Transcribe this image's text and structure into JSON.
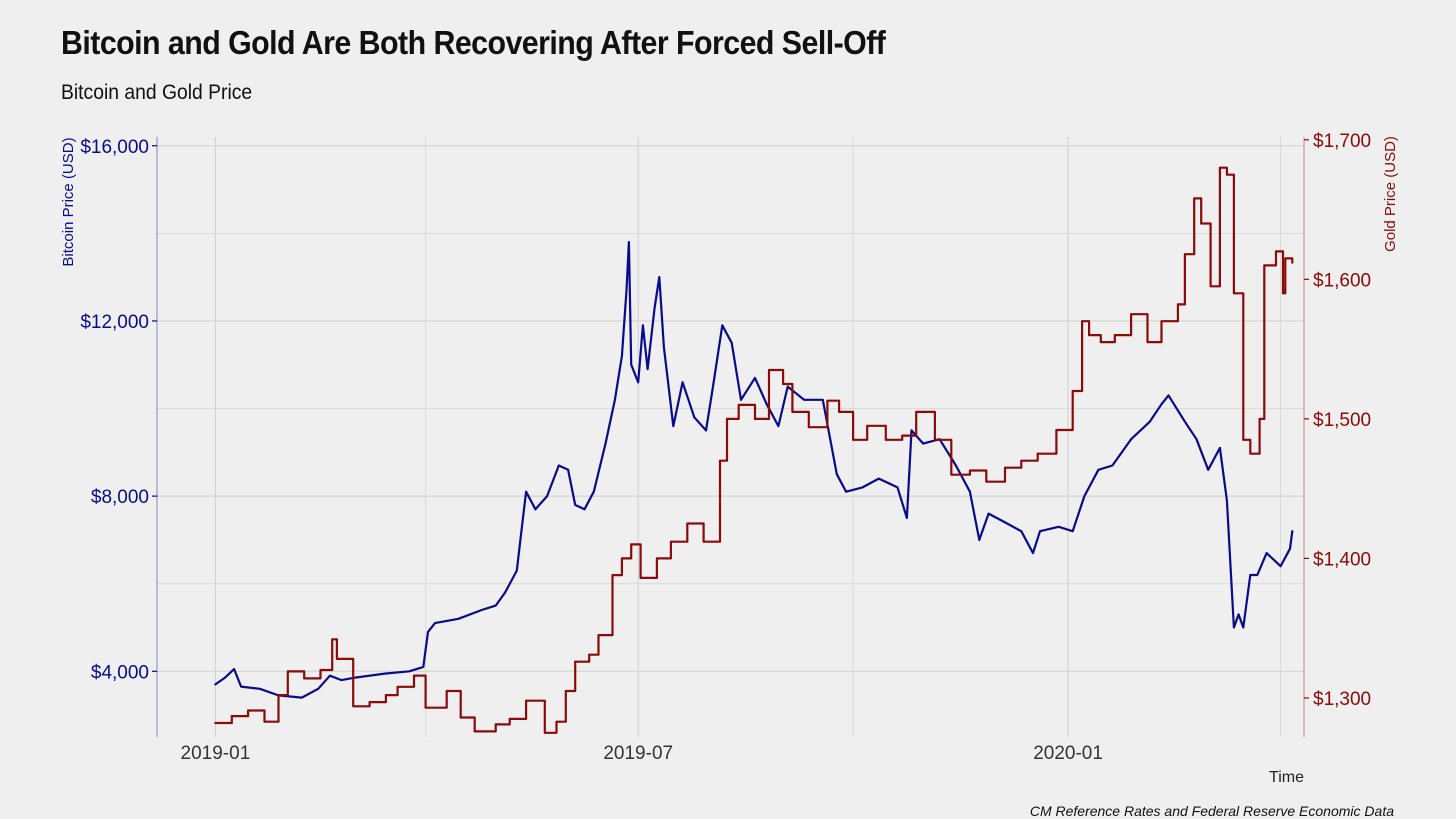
{
  "header": {
    "title": "Bitcoin and Gold Are Both Recovering After Forced Sell-Off",
    "subtitle": "Bitcoin and Gold Price",
    "caption": "CM Reference Rates and Federal Reserve Economic Data"
  },
  "colors": {
    "bitcoin": "#0a0a8c",
    "gold": "#8b0a0a",
    "grid": "#d4d4d4",
    "background": "#efefef"
  },
  "chart_data": {
    "type": "line",
    "xlabel": "Time",
    "x_range": [
      "2018-12-07",
      "2020-04-11"
    ],
    "x_ticks": [
      {
        "label": "2019-01",
        "date": "2019-01-01"
      },
      {
        "label": "2019-07",
        "date": "2019-07-01"
      },
      {
        "label": "2020-01",
        "date": "2020-01-01"
      }
    ],
    "x_minor_gridlines": [
      "2019-04-01",
      "2019-10-01",
      "2020-04-01"
    ],
    "y_left": {
      "label": "Bitcoin Price (USD)",
      "range": [
        2500,
        16200
      ],
      "ticks": [
        4000,
        8000,
        12000,
        16000
      ],
      "tick_labels": [
        "$4,000",
        "$8,000",
        "$12,000",
        "$16,000"
      ]
    },
    "y_right": {
      "label": "Gold Price (USD)",
      "range": [
        1272,
        1702
      ],
      "ticks": [
        1300,
        1400,
        1500,
        1600,
        1700
      ],
      "tick_labels": [
        "$1,300",
        "$1,400",
        "$1,500",
        "$1,600",
        "$1,700"
      ]
    },
    "series": [
      {
        "name": "Bitcoin",
        "axis": "left",
        "points": [
          [
            "2019-01-01",
            3700
          ],
          [
            "2019-01-05",
            3850
          ],
          [
            "2019-01-09",
            4050
          ],
          [
            "2019-01-12",
            3650
          ],
          [
            "2019-01-20",
            3600
          ],
          [
            "2019-01-28",
            3450
          ],
          [
            "2019-02-07",
            3400
          ],
          [
            "2019-02-14",
            3600
          ],
          [
            "2019-02-19",
            3900
          ],
          [
            "2019-02-24",
            3800
          ],
          [
            "2019-03-01",
            3850
          ],
          [
            "2019-03-15",
            3950
          ],
          [
            "2019-03-25",
            4000
          ],
          [
            "2019-03-31",
            4100
          ],
          [
            "2019-04-02",
            4900
          ],
          [
            "2019-04-05",
            5100
          ],
          [
            "2019-04-15",
            5200
          ],
          [
            "2019-04-25",
            5400
          ],
          [
            "2019-05-01",
            5500
          ],
          [
            "2019-05-05",
            5800
          ],
          [
            "2019-05-10",
            6300
          ],
          [
            "2019-05-12",
            7200
          ],
          [
            "2019-05-14",
            8100
          ],
          [
            "2019-05-18",
            7700
          ],
          [
            "2019-05-23",
            8000
          ],
          [
            "2019-05-28",
            8700
          ],
          [
            "2019-06-01",
            8600
          ],
          [
            "2019-06-04",
            7800
          ],
          [
            "2019-06-08",
            7700
          ],
          [
            "2019-06-12",
            8100
          ],
          [
            "2019-06-17",
            9200
          ],
          [
            "2019-06-21",
            10200
          ],
          [
            "2019-06-24",
            11200
          ],
          [
            "2019-06-26",
            12700
          ],
          [
            "2019-06-27",
            13800
          ],
          [
            "2019-06-28",
            11000
          ],
          [
            "2019-07-01",
            10600
          ],
          [
            "2019-07-03",
            11900
          ],
          [
            "2019-07-05",
            10900
          ],
          [
            "2019-07-08",
            12300
          ],
          [
            "2019-07-10",
            13000
          ],
          [
            "2019-07-12",
            11400
          ],
          [
            "2019-07-16",
            9600
          ],
          [
            "2019-07-20",
            10600
          ],
          [
            "2019-07-25",
            9800
          ],
          [
            "2019-07-30",
            9500
          ],
          [
            "2019-08-02",
            10500
          ],
          [
            "2019-08-06",
            11900
          ],
          [
            "2019-08-10",
            11500
          ],
          [
            "2019-08-14",
            10200
          ],
          [
            "2019-08-20",
            10700
          ],
          [
            "2019-08-25",
            10100
          ],
          [
            "2019-08-30",
            9600
          ],
          [
            "2019-09-03",
            10500
          ],
          [
            "2019-09-10",
            10200
          ],
          [
            "2019-09-18",
            10200
          ],
          [
            "2019-09-24",
            8500
          ],
          [
            "2019-09-28",
            8100
          ],
          [
            "2019-10-05",
            8200
          ],
          [
            "2019-10-12",
            8400
          ],
          [
            "2019-10-20",
            8200
          ],
          [
            "2019-10-24",
            7500
          ],
          [
            "2019-10-26",
            9500
          ],
          [
            "2019-10-31",
            9200
          ],
          [
            "2019-11-07",
            9300
          ],
          [
            "2019-11-14",
            8700
          ],
          [
            "2019-11-20",
            8100
          ],
          [
            "2019-11-24",
            7000
          ],
          [
            "2019-11-28",
            7600
          ],
          [
            "2019-12-05",
            7400
          ],
          [
            "2019-12-12",
            7200
          ],
          [
            "2019-12-17",
            6700
          ],
          [
            "2019-12-20",
            7200
          ],
          [
            "2019-12-28",
            7300
          ],
          [
            "2020-01-03",
            7200
          ],
          [
            "2020-01-08",
            8000
          ],
          [
            "2020-01-14",
            8600
          ],
          [
            "2020-01-20",
            8700
          ],
          [
            "2020-01-28",
            9300
          ],
          [
            "2020-02-05",
            9700
          ],
          [
            "2020-02-10",
            10100
          ],
          [
            "2020-02-13",
            10300
          ],
          [
            "2020-02-20",
            9700
          ],
          [
            "2020-02-25",
            9300
          ],
          [
            "2020-03-01",
            8600
          ],
          [
            "2020-03-06",
            9100
          ],
          [
            "2020-03-09",
            7900
          ],
          [
            "2020-03-12",
            5000
          ],
          [
            "2020-03-14",
            5300
          ],
          [
            "2020-03-16",
            5000
          ],
          [
            "2020-03-19",
            6200
          ],
          [
            "2020-03-22",
            6200
          ],
          [
            "2020-03-26",
            6700
          ],
          [
            "2020-04-01",
            6400
          ],
          [
            "2020-04-05",
            6800
          ],
          [
            "2020-04-06",
            7200
          ]
        ]
      },
      {
        "name": "Gold",
        "axis": "right",
        "points": [
          [
            "2019-01-01",
            1282
          ],
          [
            "2019-01-08",
            1287
          ],
          [
            "2019-01-15",
            1291
          ],
          [
            "2019-01-22",
            1283
          ],
          [
            "2019-01-28",
            1302
          ],
          [
            "2019-02-01",
            1319
          ],
          [
            "2019-02-08",
            1314
          ],
          [
            "2019-02-15",
            1320
          ],
          [
            "2019-02-20",
            1342
          ],
          [
            "2019-02-22",
            1328
          ],
          [
            "2019-03-01",
            1294
          ],
          [
            "2019-03-08",
            1297
          ],
          [
            "2019-03-15",
            1302
          ],
          [
            "2019-03-20",
            1308
          ],
          [
            "2019-03-27",
            1316
          ],
          [
            "2019-04-01",
            1293
          ],
          [
            "2019-04-10",
            1305
          ],
          [
            "2019-04-16",
            1286
          ],
          [
            "2019-04-22",
            1276
          ],
          [
            "2019-05-01",
            1281
          ],
          [
            "2019-05-07",
            1285
          ],
          [
            "2019-05-14",
            1298
          ],
          [
            "2019-05-22",
            1275
          ],
          [
            "2019-05-27",
            1283
          ],
          [
            "2019-05-31",
            1305
          ],
          [
            "2019-06-04",
            1326
          ],
          [
            "2019-06-10",
            1331
          ],
          [
            "2019-06-14",
            1345
          ],
          [
            "2019-06-20",
            1388
          ],
          [
            "2019-06-24",
            1400
          ],
          [
            "2019-06-28",
            1410
          ],
          [
            "2019-07-02",
            1386
          ],
          [
            "2019-07-09",
            1400
          ],
          [
            "2019-07-15",
            1412
          ],
          [
            "2019-07-22",
            1425
          ],
          [
            "2019-07-29",
            1412
          ],
          [
            "2019-08-05",
            1470
          ],
          [
            "2019-08-08",
            1500
          ],
          [
            "2019-08-13",
            1510
          ],
          [
            "2019-08-20",
            1500
          ],
          [
            "2019-08-26",
            1535
          ],
          [
            "2019-09-01",
            1525
          ],
          [
            "2019-09-05",
            1505
          ],
          [
            "2019-09-12",
            1494
          ],
          [
            "2019-09-20",
            1513
          ],
          [
            "2019-09-25",
            1505
          ],
          [
            "2019-10-01",
            1485
          ],
          [
            "2019-10-07",
            1495
          ],
          [
            "2019-10-15",
            1485
          ],
          [
            "2019-10-22",
            1488
          ],
          [
            "2019-10-28",
            1505
          ],
          [
            "2019-11-05",
            1485
          ],
          [
            "2019-11-12",
            1460
          ],
          [
            "2019-11-20",
            1463
          ],
          [
            "2019-11-27",
            1455
          ],
          [
            "2019-12-05",
            1465
          ],
          [
            "2019-12-12",
            1470
          ],
          [
            "2019-12-19",
            1475
          ],
          [
            "2019-12-27",
            1492
          ],
          [
            "2020-01-03",
            1520
          ],
          [
            "2020-01-07",
            1570
          ],
          [
            "2020-01-10",
            1560
          ],
          [
            "2020-01-15",
            1555
          ],
          [
            "2020-01-21",
            1560
          ],
          [
            "2020-01-28",
            1575
          ],
          [
            "2020-02-04",
            1555
          ],
          [
            "2020-02-10",
            1570
          ],
          [
            "2020-02-17",
            1582
          ],
          [
            "2020-02-20",
            1618
          ],
          [
            "2020-02-24",
            1658
          ],
          [
            "2020-02-27",
            1640
          ],
          [
            "2020-03-02",
            1595
          ],
          [
            "2020-03-06",
            1680
          ],
          [
            "2020-03-09",
            1675
          ],
          [
            "2020-03-12",
            1590
          ],
          [
            "2020-03-16",
            1485
          ],
          [
            "2020-03-19",
            1475
          ],
          [
            "2020-03-23",
            1500
          ],
          [
            "2020-03-25",
            1610
          ],
          [
            "2020-03-30",
            1620
          ],
          [
            "2020-04-02",
            1590
          ],
          [
            "2020-04-03",
            1615
          ],
          [
            "2020-04-06",
            1612
          ]
        ]
      }
    ]
  }
}
